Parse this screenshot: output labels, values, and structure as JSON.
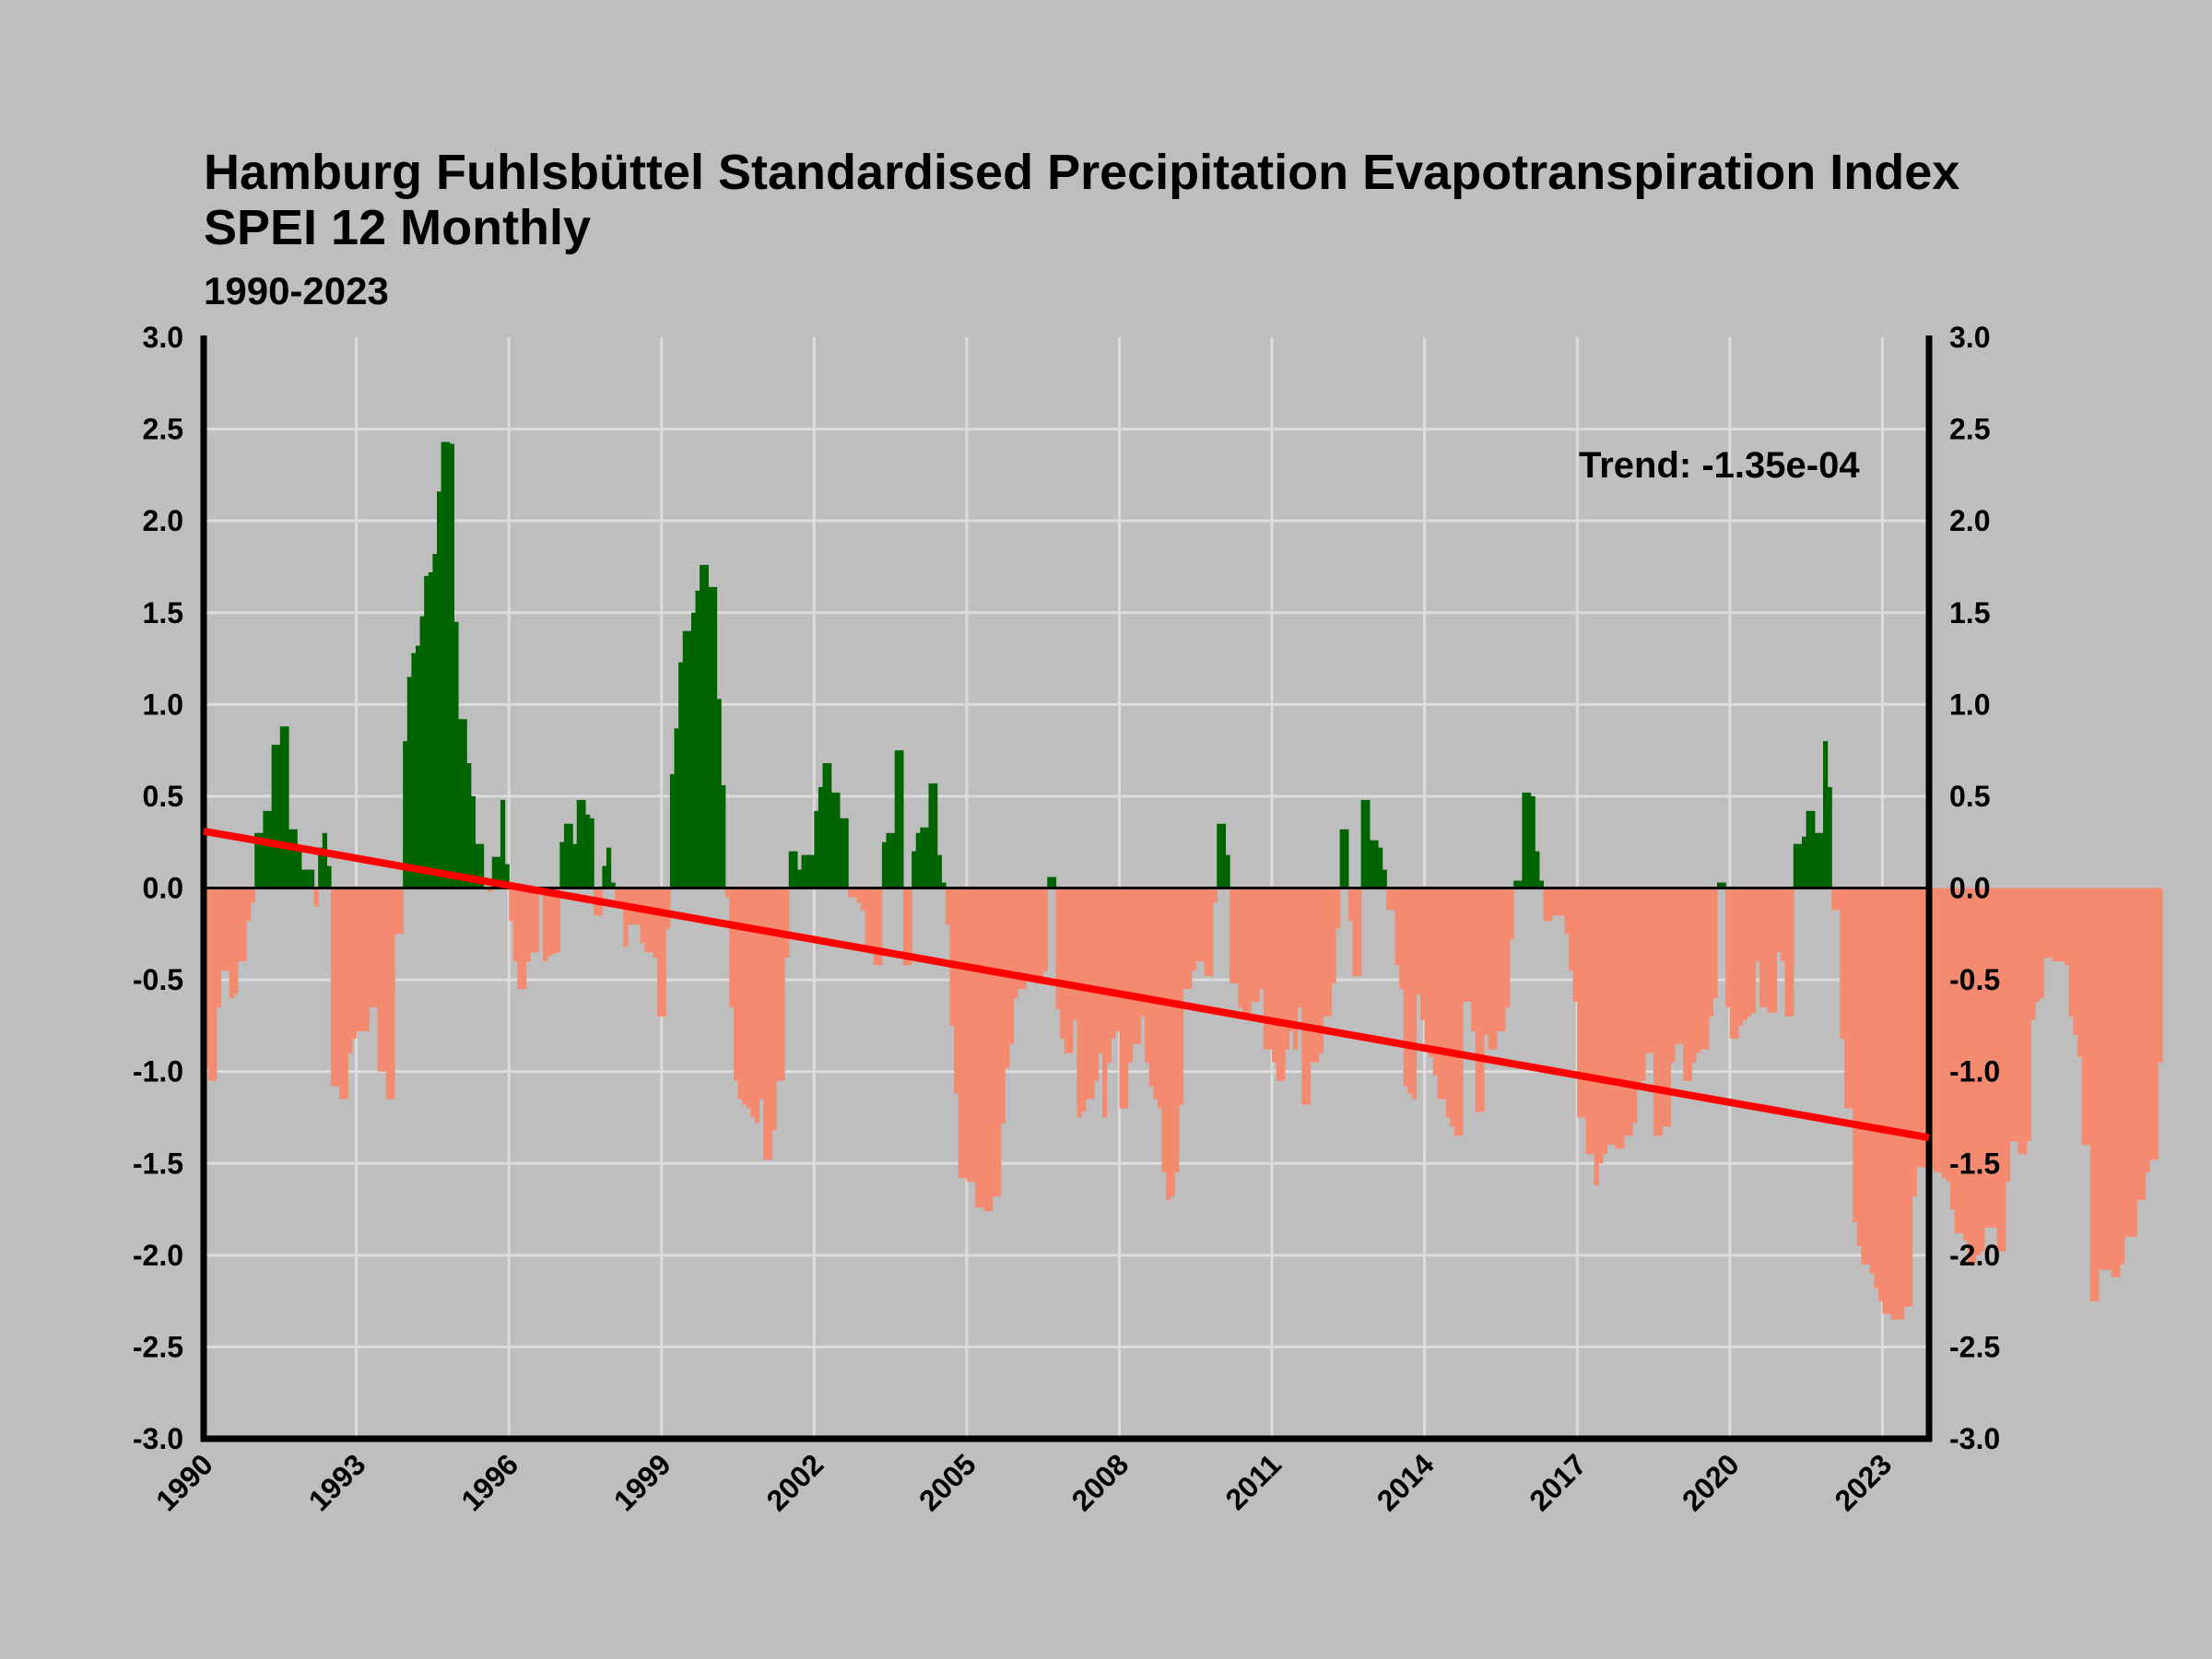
{
  "chart_data": {
    "type": "bar",
    "title_line1": "Hamburg Fuhlsbüttel Standardised Precipitation Evapotranspiration Index",
    "title_line2": "SPEI 12 Monthly",
    "subtitle": "1990-2023",
    "annotation": "Trend: -1.35e-04",
    "xlabel": "",
    "ylabel": "",
    "xlim": [
      1990.0,
      2023.917
    ],
    "ylim": [
      -3.0,
      3.0
    ],
    "x_ticks": [
      "1990",
      "1993",
      "1996",
      "1999",
      "2002",
      "2005",
      "2008",
      "2011",
      "2014",
      "2017",
      "2020",
      "2023"
    ],
    "y_ticks": [
      "3.0",
      "2.5",
      "2.0",
      "1.5",
      "1.0",
      "0.5",
      "0.0",
      "-0.5",
      "-1.0",
      "-1.5",
      "-2.0",
      "-2.5",
      "-3.0"
    ],
    "grid": true,
    "colors": {
      "positive": "#006400",
      "negative": "#f48b70",
      "trend": "#ff0000",
      "background": "#bebebe",
      "grid": "#dcdcdc"
    },
    "trend_line": {
      "x": [
        1990.0,
        2023.917
      ],
      "y": [
        0.31,
        -1.36
      ]
    },
    "series": [
      {
        "start": "1990-01",
        "step": "month",
        "values": [
          -0.98,
          -1.05,
          -1.05,
          -0.65,
          -0.45,
          -0.45,
          -0.6,
          -0.58,
          -0.4,
          -0.4,
          -0.18,
          -0.08,
          0.3,
          0.3,
          0.42,
          0.42,
          0.78,
          0.78,
          0.88,
          0.88,
          0.32,
          0.32,
          0.2,
          0.1,
          0.1,
          0.1,
          -0.1,
          0.22,
          0.3,
          0.12,
          -1.08,
          -1.08,
          -1.15,
          -1.15,
          -0.9,
          -0.82,
          -0.78,
          -0.78,
          -0.78,
          -0.65,
          -0.65,
          -1.0,
          -1.0,
          -1.15,
          -1.15,
          -0.25,
          -0.25,
          0.8,
          1.15,
          1.28,
          1.32,
          1.48,
          1.7,
          1.72,
          1.82,
          2.16,
          2.43,
          2.43,
          2.42,
          1.45,
          0.92,
          0.92,
          0.68,
          0.5,
          0.24,
          0.24,
          0.0,
          -0.02,
          0.17,
          0.17,
          0.48,
          0.13,
          -0.18,
          -0.4,
          -0.55,
          -0.55,
          -0.4,
          -0.35,
          -0.35,
          -0.02,
          -0.4,
          -0.37,
          -0.36,
          -0.35,
          0.25,
          0.35,
          0.35,
          0.24,
          0.48,
          0.48,
          0.4,
          0.38,
          -0.15,
          -0.15,
          0.12,
          0.22,
          0.03,
          -0.08,
          -0.08,
          -0.32,
          -0.2,
          -0.2,
          -0.2,
          -0.3,
          -0.35,
          -0.35,
          -0.38,
          -0.7,
          -0.7,
          -0.22,
          0.62,
          0.87,
          1.23,
          1.4,
          1.4,
          1.5,
          1.62,
          1.76,
          1.76,
          1.64,
          1.64,
          1.03,
          0.56,
          -0.05,
          -0.65,
          -1.05,
          -1.15,
          -1.18,
          -1.2,
          -1.25,
          -1.28,
          -1.15,
          -1.48,
          -1.48,
          -1.32,
          -1.05,
          -1.05,
          -0.38,
          0.2,
          0.2,
          0.1,
          0.18,
          0.18,
          0.18,
          0.42,
          0.55,
          0.68,
          0.68,
          0.52,
          0.52,
          0.38,
          0.38,
          -0.05,
          -0.05,
          -0.08,
          -0.12,
          -0.35,
          -0.35,
          -0.42,
          -0.42,
          0.25,
          0.3,
          0.3,
          0.75,
          0.75,
          -0.42,
          -0.42,
          0.2,
          0.3,
          0.33,
          0.33,
          0.57,
          0.57,
          0.18,
          0.03,
          -0.2,
          -0.75,
          -1.12,
          -1.58,
          -1.58,
          -1.6,
          -1.6,
          -1.74,
          -1.74,
          -1.76,
          -1.76,
          -1.68,
          -1.68,
          -1.28,
          -0.98,
          -0.85,
          -0.6,
          -0.55,
          -0.55,
          -0.48,
          -0.48,
          -0.52,
          -0.52,
          -0.45,
          0.06,
          0.06,
          -0.66,
          -0.82,
          -0.9,
          -0.9,
          -0.72,
          -1.25,
          -1.22,
          -1.15,
          -1.15,
          -1.05,
          -0.9,
          -1.25,
          -0.95,
          -0.82,
          -0.78,
          -1.2,
          -1.2,
          -0.95,
          -0.85,
          -0.85,
          -0.7,
          -0.95,
          -1.08,
          -1.15,
          -1.2,
          -1.55,
          -1.7,
          -1.68,
          -1.55,
          -1.18,
          -0.55,
          -0.55,
          -0.45,
          -0.4,
          -0.4,
          -0.48,
          -0.48,
          -0.08,
          0.35,
          0.35,
          0.18,
          -0.52,
          -0.52,
          -0.65,
          -0.68,
          -0.68,
          -0.62,
          -0.62,
          -0.55,
          -0.88,
          -0.88,
          -0.95,
          -1.05,
          -1.05,
          -0.88,
          -0.78,
          -0.88,
          -0.65,
          -1.18,
          -1.18,
          -0.95,
          -0.95,
          -0.9,
          -0.7,
          -0.7,
          -0.52,
          -0.22,
          0.32,
          0.32,
          -0.18,
          -0.48,
          -0.48,
          0.48,
          0.48,
          0.26,
          0.26,
          0.22,
          0.1,
          -0.12,
          -0.12,
          -0.42,
          -0.55,
          -1.08,
          -1.12,
          -1.15,
          -0.58,
          -0.72,
          -0.88,
          -0.92,
          -1.02,
          -1.15,
          -1.15,
          -1.25,
          -1.3,
          -1.35,
          -1.35,
          -0.62,
          -0.62,
          -0.78,
          -1.22,
          -1.22,
          -0.8,
          -0.88,
          -0.88,
          -0.78,
          -0.78,
          -0.65,
          -0.28,
          0.04,
          0.04,
          0.52,
          0.52,
          0.5,
          0.2,
          0.04,
          -0.18,
          -0.18,
          -0.15,
          -0.15,
          -0.15,
          -0.25,
          -0.45,
          -0.62,
          -1.25,
          -1.25,
          -1.45,
          -1.45,
          -1.62,
          -1.5,
          -1.45,
          -1.4,
          -1.4,
          -1.42,
          -1.42,
          -1.35,
          -1.35,
          -1.28,
          -1.1,
          -1.05,
          -0.9,
          -0.9,
          -1.35,
          -1.35,
          -1.3,
          -1.3,
          -0.95,
          -0.85,
          -0.85,
          -1.05,
          -1.05,
          -0.95,
          -0.9,
          -0.88,
          -0.88,
          -0.7,
          -0.6,
          0.03,
          0.03,
          -0.65,
          -0.82,
          -0.82,
          -0.75,
          -0.72,
          -0.7,
          -0.68,
          -0.4,
          -0.65,
          -0.65,
          -0.68,
          -0.68,
          -0.35,
          -0.4,
          -0.7,
          -0.7,
          0.24,
          0.24,
          0.28,
          0.42,
          0.42,
          0.3,
          0.3,
          0.8,
          0.55,
          -0.12,
          -0.12,
          -0.82,
          -1.2,
          -1.2,
          -1.82,
          -1.95,
          -2.05,
          -2.05,
          -2.1,
          -2.18,
          -2.25,
          -2.32,
          -2.32,
          -2.35,
          -2.35,
          -2.35,
          -2.28,
          -2.28,
          -1.68,
          -1.52,
          -1.52,
          -1.52,
          -1.52,
          -1.55,
          -1.55,
          -1.58,
          -1.6,
          -1.75,
          -1.88,
          -1.88,
          -1.92,
          -2.05,
          -2.05,
          -2.0,
          -1.98,
          -1.85,
          -1.85,
          -1.85,
          -1.98,
          -1.98,
          -1.6,
          -1.38,
          -1.38,
          -1.45,
          -1.45,
          -1.38,
          -0.72,
          -0.62,
          -0.6,
          -0.38,
          -0.38,
          -0.4,
          -0.4,
          -0.4,
          -0.42,
          -0.7,
          -0.8,
          -0.92,
          -1.4,
          -1.4,
          -2.25,
          -2.25,
          -2.08,
          -2.08,
          -2.08,
          -2.12,
          -2.12,
          -2.05,
          -1.9,
          -1.9,
          -1.9,
          -1.7,
          -1.7,
          -1.55,
          -1.48,
          -1.48,
          -0.95
        ]
      }
    ]
  }
}
